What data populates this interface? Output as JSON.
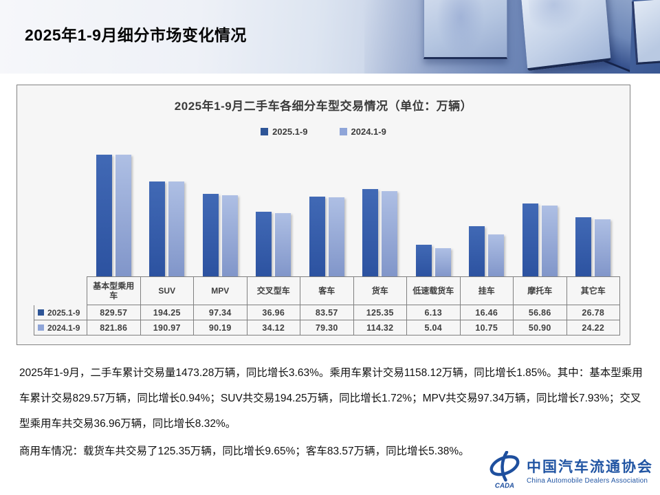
{
  "slide": {
    "title": "2025年1-9月细分市场变化情况"
  },
  "chart_data": {
    "type": "bar",
    "title": "2025年1-9月二手车各细分车型交易情况（单位：万辆）",
    "unit": "万辆",
    "categories": [
      "基本型乘用车",
      "SUV",
      "MPV",
      "交叉型车",
      "客车",
      "货车",
      "低速载货车",
      "挂车",
      "摩托车",
      "其它车"
    ],
    "series": [
      {
        "name": "2025.1-9",
        "color": "#2e5597",
        "values": [
          829.57,
          194.25,
          97.34,
          36.96,
          83.57,
          125.35,
          6.13,
          16.46,
          56.86,
          26.78
        ]
      },
      {
        "name": "2024.1-9",
        "color": "#8fa5d8",
        "values": [
          821.86,
          190.97,
          90.19,
          34.12,
          79.3,
          114.32,
          5.04,
          10.75,
          50.9,
          24.22
        ]
      }
    ],
    "legend_position": "top",
    "axis_scale": "log",
    "grid": false,
    "data_table_shown": true
  },
  "body": {
    "paragraphs": [
      "2025年1-9月，二手车累计交易量1473.28万辆，同比增长3.63%。乘用车累计交易1158.12万辆，同比增长1.85%。其中：基本型乘用车累计交易829.57万辆，同比增长0.94%；SUV共交易194.25万辆，同比增长1.72%；MPV共交易97.34万辆，同比增长7.93%；交叉型乘用车共交易36.96万辆，同比增长8.32%。",
      "商用车情况：载货车共交易了125.35万辆，同比增长9.65%；客车83.57万辆，同比增长5.38%。"
    ]
  },
  "logo": {
    "acronym": "CADA",
    "name_cn": "中国汽车流通协会",
    "name_en": "China Automobile Dealers Association",
    "color": "#2155a3"
  }
}
